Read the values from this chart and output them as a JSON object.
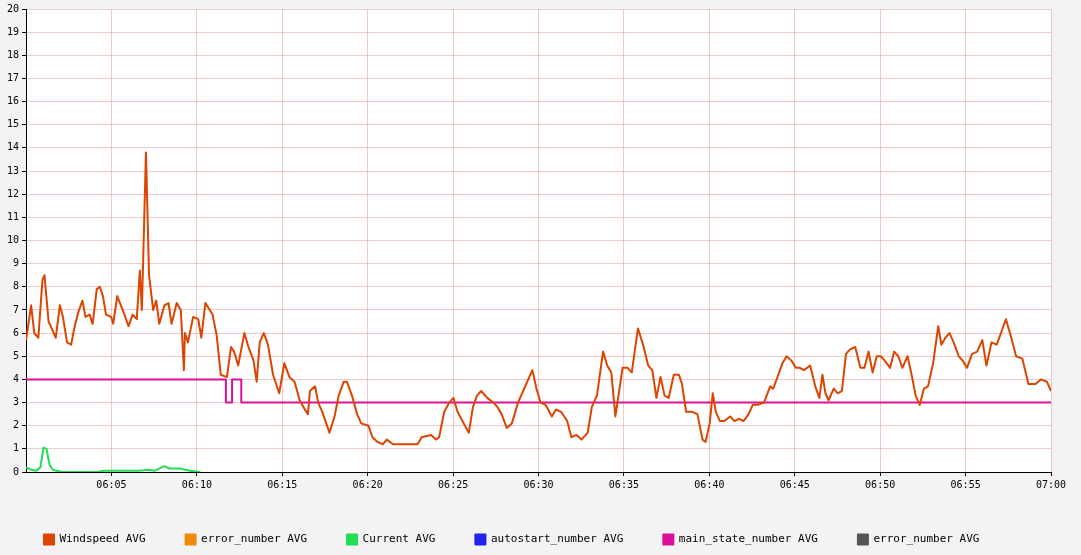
{
  "chart_data": {
    "type": "line",
    "xlim": [
      6,
      7
    ],
    "ylim": [
      0,
      20
    ],
    "xticks": [
      {
        "value": 6.0833,
        "label": "06:05"
      },
      {
        "value": 6.1667,
        "label": "06:10"
      },
      {
        "value": 6.25,
        "label": "06:15"
      },
      {
        "value": 6.3333,
        "label": "06:20"
      },
      {
        "value": 6.4167,
        "label": "06:25"
      },
      {
        "value": 6.5,
        "label": "06:30"
      },
      {
        "value": 6.5833,
        "label": "06:35"
      },
      {
        "value": 6.6667,
        "label": "06:40"
      },
      {
        "value": 6.75,
        "label": "06:45"
      },
      {
        "value": 6.8333,
        "label": "06:50"
      },
      {
        "value": 6.9167,
        "label": "06:55"
      },
      {
        "value": 7,
        "label": "07:00"
      }
    ],
    "yticks": [
      0,
      1,
      2,
      3,
      4,
      5,
      6,
      7,
      8,
      9,
      10,
      11,
      12,
      13,
      14,
      15,
      16,
      17,
      18,
      19,
      20
    ],
    "grid": true,
    "legend": "bottom",
    "marker": "none",
    "line_style": "solid",
    "series": [
      {
        "name": "Windspeed AVG",
        "color": "#dd4400",
        "x": [
          6,
          6.005,
          6.008,
          6.012,
          6.016,
          6.018,
          6.022,
          6.025,
          6.029,
          6.033,
          6.036,
          6.04,
          6.044,
          6.047,
          6.051,
          6.055,
          6.058,
          6.062,
          6.065,
          6.069,
          6.072,
          6.075,
          6.078,
          6.083,
          6.085,
          6.089,
          6.096,
          6.1,
          6.104,
          6.108,
          6.111,
          6.113,
          6.117,
          6.12,
          6.124,
          6.127,
          6.13,
          6.135,
          6.139,
          6.142,
          6.147,
          6.151,
          6.154,
          6.155,
          6.158,
          6.163,
          6.168,
          6.171,
          6.175,
          6.182,
          6.186,
          6.19,
          6.196,
          6.2,
          6.203,
          6.207,
          6.213,
          6.217,
          6.222,
          6.225,
          6.228,
          6.232,
          6.236,
          6.241,
          6.247,
          6.252,
          6.257,
          6.262,
          6.267,
          6.272,
          6.275,
          6.277,
          6.282,
          6.285,
          6.289,
          6.296,
          6.301,
          6.305,
          6.31,
          6.313,
          6.318,
          6.323,
          6.327,
          6.334,
          6.338,
          6.343,
          6.348,
          6.352,
          6.358,
          6.37,
          6.382,
          6.386,
          6.395,
          6.4,
          6.403,
          6.408,
          6.413,
          6.417,
          6.421,
          6.427,
          6.432,
          6.436,
          6.44,
          6.444,
          6.45,
          6.456,
          6.46,
          6.464,
          6.469,
          6.474,
          6.48,
          6.485,
          6.49,
          6.494,
          6.498,
          6.502,
          6.507,
          6.513,
          6.517,
          6.522,
          6.528,
          6.532,
          6.537,
          6.542,
          6.548,
          6.552,
          6.557,
          6.563,
          6.567,
          6.571,
          6.575,
          6.582,
          6.587,
          6.591,
          6.597,
          6.602,
          6.607,
          6.611,
          6.615,
          6.619,
          6.623,
          6.627,
          6.632,
          6.637,
          6.64,
          6.644,
          6.65,
          6.655,
          6.66,
          6.663,
          6.667,
          6.67,
          6.673,
          6.677,
          6.681,
          6.687,
          6.691,
          6.696,
          6.7,
          6.705,
          6.709,
          6.714,
          6.72,
          6.726,
          6.729,
          6.734,
          6.738,
          6.742,
          6.747,
          6.751,
          6.755,
          6.759,
          6.765,
          6.77,
          6.774,
          6.777,
          6.78,
          6.783,
          6.788,
          6.792,
          6.796,
          6.8,
          6.804,
          6.809,
          6.814,
          6.818,
          6.822,
          6.826,
          6.83,
          6.834,
          6.838,
          6.843,
          6.847,
          6.851,
          6.855,
          6.86,
          6.864,
          6.868,
          6.872,
          6.876,
          6.88,
          6.885,
          6.89,
          6.893,
          6.897,
          6.901,
          6.905,
          6.91,
          6.914,
          6.918,
          6.923,
          6.928,
          6.933,
          6.937,
          6.942,
          6.947,
          6.952,
          6.956,
          6.96,
          6.966,
          6.972,
          6.978,
          6.985,
          6.99,
          6.996,
          7
        ],
        "values": [
          5.7,
          7.2,
          6.0,
          5.8,
          8.3,
          8.5,
          6.5,
          6.2,
          5.8,
          7.2,
          6.7,
          5.6,
          5.5,
          6.2,
          6.9,
          7.4,
          6.7,
          6.8,
          6.4,
          7.9,
          8.0,
          7.6,
          6.8,
          6.7,
          6.4,
          7.6,
          6.8,
          6.3,
          6.8,
          6.6,
          8.7,
          7.0,
          13.8,
          8.5,
          7.0,
          7.4,
          6.4,
          7.2,
          7.3,
          6.4,
          7.3,
          7.0,
          4.4,
          6.0,
          5.6,
          6.7,
          6.6,
          5.8,
          7.3,
          6.8,
          5.9,
          4.2,
          4.1,
          5.4,
          5.2,
          4.6,
          6.0,
          5.4,
          4.8,
          3.9,
          5.6,
          6.0,
          5.5,
          4.2,
          3.4,
          4.7,
          4.1,
          3.9,
          3.1,
          2.7,
          2.5,
          3.5,
          3.7,
          3.0,
          2.6,
          1.7,
          2.4,
          3.3,
          3.9,
          3.9,
          3.3,
          2.5,
          2.1,
          2.0,
          1.5,
          1.3,
          1.2,
          1.4,
          1.2,
          1.2,
          1.2,
          1.5,
          1.6,
          1.4,
          1.5,
          2.6,
          3.0,
          3.2,
          2.6,
          2.1,
          1.7,
          2.8,
          3.3,
          3.5,
          3.2,
          3.0,
          2.8,
          2.5,
          1.9,
          2.1,
          3.0,
          3.5,
          4.0,
          4.4,
          3.6,
          3.0,
          2.9,
          2.4,
          2.7,
          2.6,
          2.2,
          1.5,
          1.6,
          1.4,
          1.7,
          2.8,
          3.3,
          5.2,
          4.6,
          4.3,
          2.4,
          4.5,
          4.5,
          4.3,
          6.2,
          5.5,
          4.6,
          4.4,
          3.2,
          4.1,
          3.3,
          3.2,
          4.2,
          4.2,
          3.8,
          2.6,
          2.6,
          2.5,
          1.4,
          1.3,
          2.1,
          3.4,
          2.6,
          2.2,
          2.2,
          2.4,
          2.2,
          2.3,
          2.2,
          2.5,
          2.9,
          2.9,
          3.0,
          3.7,
          3.6,
          4.2,
          4.7,
          5.0,
          4.8,
          4.5,
          4.5,
          4.4,
          4.6,
          3.7,
          3.2,
          4.2,
          3.4,
          3.1,
          3.6,
          3.4,
          3.5,
          5.1,
          5.3,
          5.4,
          4.5,
          4.5,
          5.2,
          4.3,
          5.0,
          5.0,
          4.8,
          4.5,
          5.2,
          5.0,
          4.5,
          5.0,
          4.2,
          3.3,
          2.9,
          3.6,
          3.7,
          4.7,
          6.3,
          5.5,
          5.8,
          6.0,
          5.6,
          5.0,
          4.8,
          4.5,
          5.1,
          5.2,
          5.7,
          4.6,
          5.6,
          5.5,
          6.1,
          6.6,
          6.0,
          5.0,
          4.9,
          3.8,
          3.8,
          4.0,
          3.9,
          3.5
        ]
      },
      {
        "name": "error_number AVG",
        "color": "#f08a0b"
      },
      {
        "name": "Current AVG",
        "color": "#22dd55",
        "x": [
          6,
          6.005,
          6.01,
          6.014,
          6.017,
          6.02,
          6.023,
          6.026,
          6.03,
          6.035,
          6.07,
          6.075,
          6.09,
          6.11,
          6.12,
          6.125,
          6.135,
          6.14,
          6.15,
          6.16,
          6.17
        ],
        "values": [
          0.2,
          0.1,
          0.05,
          0.2,
          1.05,
          1.0,
          0.3,
          0.1,
          0.05,
          0,
          0,
          0.05,
          0.05,
          0.05,
          0.1,
          0.05,
          0.25,
          0.15,
          0.15,
          0.05,
          0
        ]
      },
      {
        "name": "autostart_number AVG",
        "color": "#2222ee"
      },
      {
        "name": "main_state_number AVG",
        "color": "#dd1199",
        "type": "step",
        "x": [
          6,
          6.195,
          6.201,
          6.21,
          7
        ],
        "values": [
          4,
          3,
          4,
          3,
          3
        ]
      },
      {
        "name": "error_number AVG",
        "color": "#555555"
      }
    ]
  }
}
